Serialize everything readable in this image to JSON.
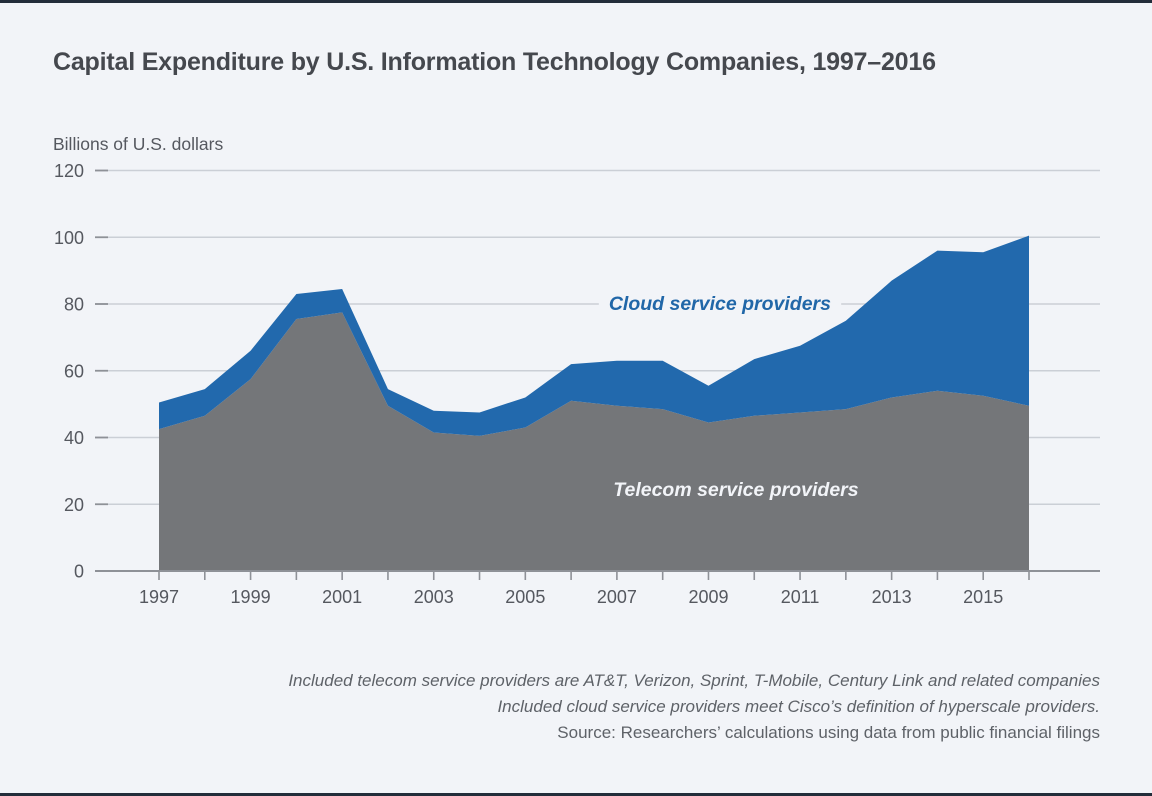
{
  "page": {
    "background": "#f2f4f8",
    "edge_bar_color": "#232d3a"
  },
  "chart_data": {
    "type": "area",
    "stacked": true,
    "title": "Capital Expenditure by U.S. Information Technology Companies, 1997–2016",
    "ylabel": "Billions of U.S. dollars",
    "xlabel": "",
    "ylim": [
      0,
      120
    ],
    "y_ticks": [
      0,
      20,
      40,
      60,
      80,
      100,
      120
    ],
    "grid": "horizontal",
    "legend_position": "inline-labels",
    "x": [
      1997,
      1998,
      1999,
      2000,
      2001,
      2002,
      2003,
      2004,
      2005,
      2006,
      2007,
      2008,
      2009,
      2010,
      2011,
      2012,
      2013,
      2014,
      2015,
      2016
    ],
    "x_tick_labels": [
      "1997",
      "1999",
      "2001",
      "2003",
      "2005",
      "2007",
      "2009",
      "2011",
      "2013",
      "2015"
    ],
    "series": [
      {
        "name": "Telecom service providers",
        "color": "#747679",
        "values": [
          42.5,
          46.5,
          57.5,
          75.5,
          77.5,
          49.5,
          41.5,
          40.5,
          43,
          51,
          49.5,
          48.5,
          44.5,
          46.5,
          47.5,
          48.5,
          52,
          54,
          52.5,
          49.5
        ],
        "label": {
          "text_color": "#f2f4f8",
          "x_year": 2009.6,
          "y_value": 24.6
        }
      },
      {
        "name": "Cloud service providers",
        "color": "#2269ad",
        "values": [
          8,
          8,
          8.5,
          7.5,
          7,
          5,
          6.5,
          7,
          9,
          11,
          13.5,
          14.5,
          11,
          17,
          20,
          26.5,
          35,
          42,
          43,
          51
        ],
        "label": {
          "text_color": "#2167a8",
          "x_year": 2009.25,
          "y_value": 80.3
        }
      }
    ],
    "totals": [
      50.5,
      54.5,
      66,
      83,
      84.5,
      54.5,
      48,
      47.5,
      52,
      62,
      63,
      63,
      55.5,
      63.5,
      67.5,
      75,
      87,
      96,
      95.5,
      100.5
    ],
    "axis_color": "#8e9197",
    "gridline_color": "#cbcfd6",
    "tick_text_color": "#55585f"
  },
  "notes": {
    "lines": [
      {
        "text": "Included telecom service providers are AT&T, Verizon, Sprint, T-Mobile, Century Link and related companies",
        "italic": true
      },
      {
        "text": "Included cloud service providers meet Cisco’s definition of hyperscale providers.",
        "italic": true
      },
      {
        "text": "Source: Researchers’ calculations using data from public financial filings",
        "italic": false
      }
    ]
  }
}
